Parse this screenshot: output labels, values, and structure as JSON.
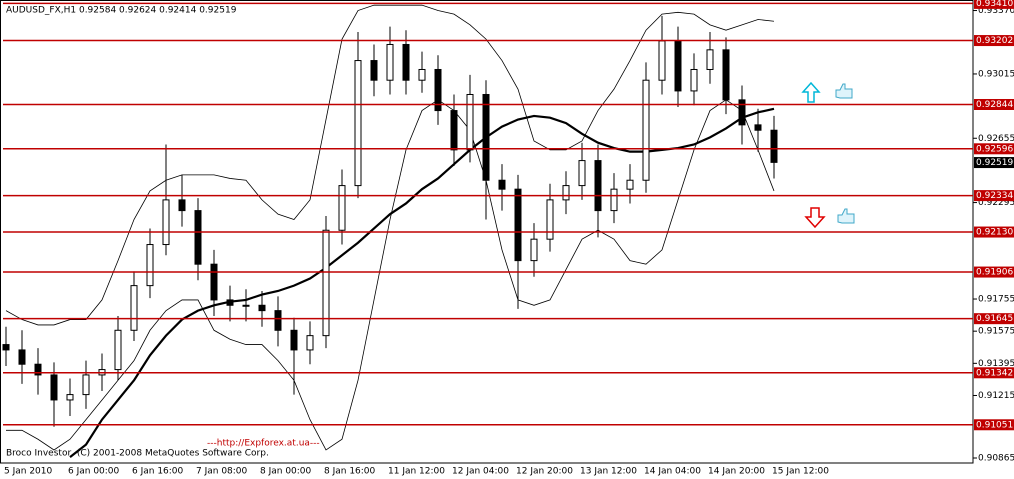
{
  "chart_data": {
    "type": "candlestick",
    "title": "AUDUSD_FX,H1  0.92584 0.92624 0.92414 0.92519",
    "watermark": "---http://Expforex.at.ua---",
    "copyright": "Broco Investor, (C) 2001-2008 MetaQuotes Software Corp.",
    "categories": [
      "5 Jan 2010",
      null,
      null,
      null,
      "6 Jan 00:00",
      null,
      null,
      null,
      "6 Jan 16:00",
      null,
      null,
      null,
      "7 Jan 08:00",
      null,
      null,
      null,
      "8 Jan 00:00",
      null,
      null,
      null,
      "8 Jan 16:00",
      null,
      null,
      null,
      "11 Jan 12:00",
      null,
      null,
      null,
      "12 Jan 04:00",
      null,
      null,
      null,
      "12 Jan 20:00",
      null,
      null,
      null,
      "13 Jan 12:00",
      null,
      null,
      null,
      "14 Jan 04:00",
      null,
      null,
      null,
      "14 Jan 20:00",
      null,
      null,
      null,
      "15 Jan 12:00"
    ],
    "open": [
      0.915,
      0.9147,
      0.9139,
      0.9133,
      0.9119,
      0.9122,
      0.9133,
      0.9136,
      0.9158,
      0.9183,
      0.9206,
      0.9231,
      0.9225,
      0.9195,
      0.9175,
      0.9172,
      0.9172,
      0.9169,
      0.9158,
      0.9147,
      0.9155,
      0.9214,
      0.9239,
      0.9309,
      0.9298,
      0.9318,
      0.9298,
      0.9304,
      0.9281,
      0.9259,
      0.929,
      0.9242,
      0.9237,
      0.9197,
      0.9209,
      0.9231,
      0.9239,
      0.9253,
      0.9225,
      0.9237,
      0.9242,
      0.9298,
      0.932,
      0.9292,
      0.9304,
      0.9315,
      0.9287,
      0.9273,
      0.927
    ],
    "high": [
      0.916,
      0.9158,
      0.9148,
      0.914,
      0.9131,
      0.9141,
      0.9145,
      0.9166,
      0.9191,
      0.9215,
      0.9262,
      0.9245,
      0.9232,
      0.9203,
      0.9183,
      0.9181,
      0.918,
      0.9177,
      0.9165,
      0.9163,
      0.9222,
      0.9248,
      0.9325,
      0.9318,
      0.9328,
      0.9326,
      0.9314,
      0.9312,
      0.929,
      0.9301,
      0.9298,
      0.9251,
      0.9245,
      0.9218,
      0.924,
      0.9247,
      0.9263,
      0.9262,
      0.9246,
      0.9251,
      0.9308,
      0.9334,
      0.9328,
      0.9313,
      0.9325,
      0.9322,
      0.9295,
      0.9282,
      0.9278
    ],
    "low": [
      0.9138,
      0.9128,
      0.9122,
      0.9104,
      0.911,
      0.9114,
      0.9124,
      0.913,
      0.9152,
      0.9176,
      0.92,
      0.9216,
      0.9186,
      0.9166,
      0.9163,
      0.9163,
      0.916,
      0.9149,
      0.9122,
      0.9139,
      0.9148,
      0.9206,
      0.9232,
      0.9289,
      0.929,
      0.929,
      0.9291,
      0.9273,
      0.925,
      0.9252,
      0.922,
      0.9225,
      0.917,
      0.9188,
      0.9202,
      0.9223,
      0.9231,
      0.921,
      0.9218,
      0.9229,
      0.9235,
      0.929,
      0.9283,
      0.9284,
      0.9296,
      0.9279,
      0.9262,
      0.9258,
      0.9243
    ],
    "close": [
      0.9147,
      0.9139,
      0.9133,
      0.9119,
      0.9122,
      0.9133,
      0.9136,
      0.9158,
      0.9183,
      0.9206,
      0.9231,
      0.9225,
      0.9195,
      0.9175,
      0.9172,
      0.9172,
      0.9169,
      0.9158,
      0.9147,
      0.9155,
      0.9214,
      0.9239,
      0.9309,
      0.9298,
      0.9318,
      0.9298,
      0.9304,
      0.9281,
      0.9259,
      0.929,
      0.9242,
      0.9237,
      0.9197,
      0.9209,
      0.9231,
      0.9239,
      0.9253,
      0.9225,
      0.9237,
      0.9242,
      0.9298,
      0.932,
      0.9292,
      0.9304,
      0.9315,
      0.9287,
      0.9273,
      0.927,
      0.9252
    ],
    "candle_color": "#000000",
    "indicators": [
      {
        "color": "#000000",
        "width": 2.2,
        "values": [
          null,
          null,
          null,
          null,
          0.9087,
          0.9094,
          0.9108,
          0.9119,
          0.913,
          0.9144,
          0.9155,
          0.9164,
          0.9169,
          0.9172,
          0.9174,
          0.9175,
          0.9178,
          0.918,
          0.9183,
          0.9187,
          0.9193,
          0.92,
          0.9207,
          0.9215,
          0.9223,
          0.9229,
          0.9237,
          0.9243,
          0.9251,
          0.9259,
          0.9266,
          0.9272,
          0.9276,
          0.9278,
          0.9277,
          0.9274,
          0.9268,
          0.9263,
          0.926,
          0.9258,
          0.9258,
          0.9259,
          0.926,
          0.9262,
          0.9266,
          0.9271,
          0.9277,
          0.928,
          0.9282
        ]
      },
      {
        "color": "#000000",
        "width": 0.8,
        "values": [
          0.9169,
          0.9164,
          0.9161,
          0.9161,
          0.9164,
          0.9164,
          0.9175,
          0.9197,
          0.922,
          0.9236,
          0.9242,
          0.9245,
          0.9245,
          0.9245,
          0.9243,
          0.9242,
          0.9231,
          0.9223,
          0.922,
          0.9231,
          0.9276,
          0.9321,
          0.9337,
          0.934,
          0.934,
          0.934,
          0.934,
          0.9337,
          0.9335,
          0.9329,
          0.9321,
          0.9309,
          0.9293,
          0.9264,
          0.9259,
          0.9259,
          0.9264,
          0.9281,
          0.9293,
          0.9309,
          0.9326,
          0.9335,
          0.9336,
          0.9335,
          0.9329,
          0.9326,
          0.9329,
          0.9332,
          0.9331
        ]
      },
      {
        "color": "#000000",
        "width": 0.8,
        "values": [
          0.9102,
          0.9102,
          0.9097,
          0.9091,
          0.9097,
          0.9108,
          0.9119,
          0.913,
          0.9141,
          0.9158,
          0.9169,
          0.9175,
          0.9175,
          0.9158,
          0.9153,
          0.915,
          0.915,
          0.9141,
          0.913,
          0.9108,
          0.9091,
          0.9097,
          0.913,
          0.9175,
          0.922,
          0.9259,
          0.9281,
          0.9287,
          0.9281,
          0.927,
          0.9242,
          0.9203,
          0.9175,
          0.9172,
          0.9175,
          0.9192,
          0.9209,
          0.9214,
          0.9209,
          0.9197,
          0.9195,
          0.9203,
          0.9231,
          0.9259,
          0.9281,
          0.9287,
          0.9281,
          0.9259,
          0.9236
        ]
      }
    ],
    "ylim": [
      0.90837,
      0.93429
    ],
    "yticks": [
      {
        "value": 0.9337,
        "label": "0.93370"
      },
      0.93015,
      0.92655,
      0.92295,
      0.91755,
      0.91575,
      0.91395,
      0.91215,
      0.90865
    ],
    "level_color": "#c00000",
    "levels": [
      {
        "value": 0.9341,
        "label": "0.93410"
      },
      0.93202,
      0.92844,
      0.92596,
      0.92334,
      {
        "value": 0.9213,
        "label": "0.92130"
      },
      0.91906,
      0.91645,
      0.91342,
      0.91051
    ],
    "current_price": 0.92519
  }
}
